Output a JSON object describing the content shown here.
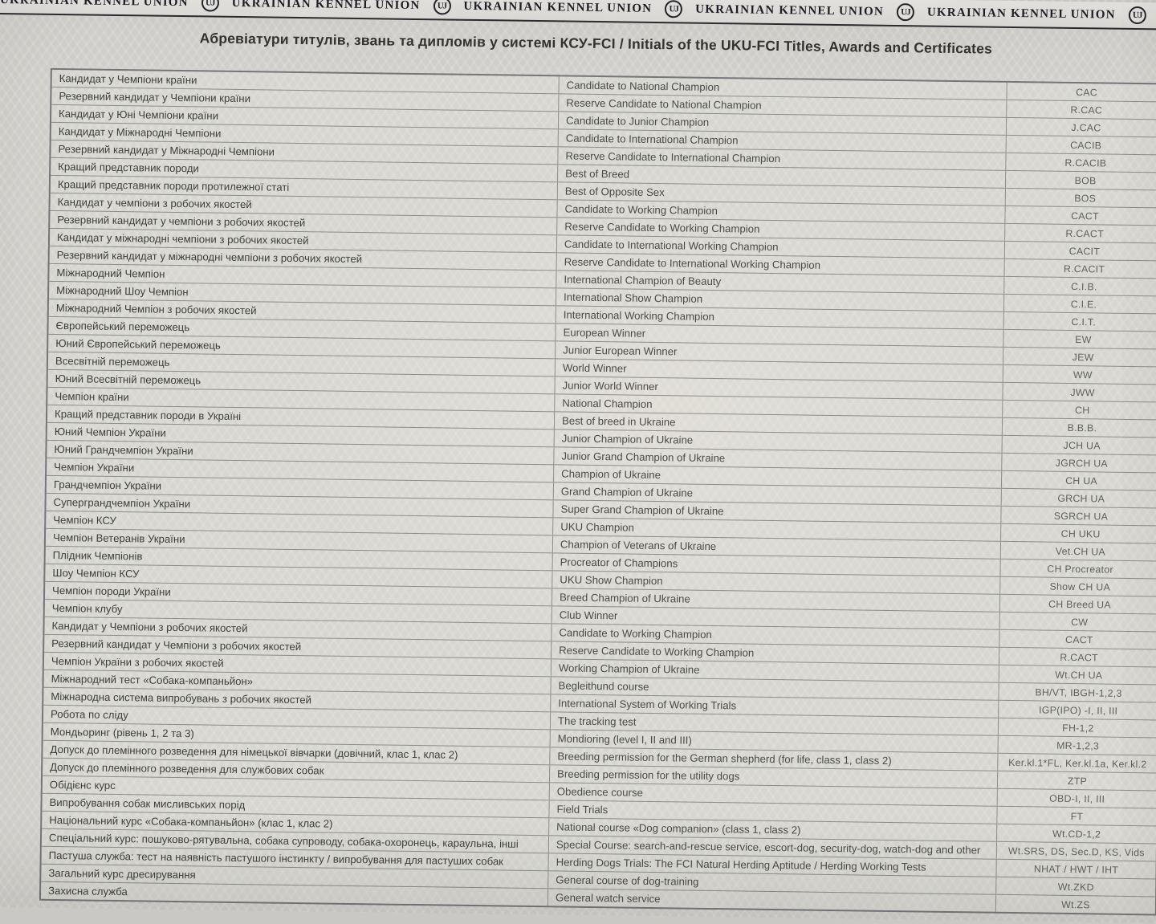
{
  "colors": {
    "paper": "#d8d7d3",
    "ink": "#3e3e3d",
    "border": "#8d8d8b",
    "banner_ink": "#1d1d25"
  },
  "document": {
    "banner": {
      "label": "UKRAINIAN KENNEL UNION",
      "monogram": "UJ",
      "repeat": 6
    },
    "title": "Абревіатури титулів, звань та дипломів у системі КСУ-FCI / Initials of the UKU-FCI Titles, Awards and Certificates",
    "rows": [
      {
        "uk": "Кандидат у Чемпіони країни",
        "en": "Candidate to National Champion",
        "abbr": "CAC"
      },
      {
        "uk": "Резервний кандидат у Чемпіони країни",
        "en": "Reserve Candidate to National Champion",
        "abbr": "R.CAC"
      },
      {
        "uk": "Кандидат у Юні Чемпіони країни",
        "en": "Candidate to Junior Champion",
        "abbr": "J.CAC"
      },
      {
        "uk": "Кандидат у Міжнародні Чемпіони",
        "en": "Candidate to International Champion",
        "abbr": "CACIB"
      },
      {
        "uk": "Резервний кандидат у Міжнародні Чемпіони",
        "en": "Reserve Candidate to International Champion",
        "abbr": "R.CACIB"
      },
      {
        "uk": "Кращий представник породи",
        "en": "Best of Breed",
        "abbr": "BOB"
      },
      {
        "uk": "Кращий представник породи протилежної статі",
        "en": "Best of Opposite Sex",
        "abbr": "BOS"
      },
      {
        "uk": "Кандидат у чемпіони з робочих якостей",
        "en": "Candidate to Working Champion",
        "abbr": "CACT"
      },
      {
        "uk": "Резервний кандидат у чемпіони з робочих якостей",
        "en": "Reserve Candidate to Working Champion",
        "abbr": "R.CACT"
      },
      {
        "uk": "Кандидат у міжнародні чемпіони з робочих якостей",
        "en": "Candidate to International Working Champion",
        "abbr": "CACIT"
      },
      {
        "uk": "Резервний кандидат у міжнародні чемпіони з робочих якостей",
        "en": "Reserve Candidate to International Working Champion",
        "abbr": "R.CACIT"
      },
      {
        "uk": "Міжнародний Чемпіон",
        "en": "International Champion of Beauty",
        "abbr": "C.I.B."
      },
      {
        "uk": "Міжнародний Шоу Чемпіон",
        "en": "International Show Champion",
        "abbr": "C.I.E."
      },
      {
        "uk": "Міжнародний Чемпіон з робочих якостей",
        "en": "International Working Champion",
        "abbr": "C.I.T."
      },
      {
        "uk": "Європейський переможець",
        "en": "European Winner",
        "abbr": "EW"
      },
      {
        "uk": "Юний Європейський переможець",
        "en": "Junior European Winner",
        "abbr": "JEW"
      },
      {
        "uk": "Всесвітній переможець",
        "en": "World Winner",
        "abbr": "WW"
      },
      {
        "uk": "Юний Всесвітній переможець",
        "en": "Junior World Winner",
        "abbr": "JWW"
      },
      {
        "uk": "Чемпіон країни",
        "en": "National Champion",
        "abbr": "CH"
      },
      {
        "uk": "Кращий представник породи в Україні",
        "en": "Best of breed in Ukraine",
        "abbr": "B.B.B."
      },
      {
        "uk": "Юний Чемпіон України",
        "en": "Junior Champion of Ukraine",
        "abbr": "JCH UA"
      },
      {
        "uk": "Юний Грандчемпіон України",
        "en": "Junior Grand Champion of Ukraine",
        "abbr": "JGRCH UA"
      },
      {
        "uk": "Чемпіон України",
        "en": "Champion of Ukraine",
        "abbr": "CH UA"
      },
      {
        "uk": "Грандчемпіон України",
        "en": "Grand Champion of Ukraine",
        "abbr": "GRCH UA"
      },
      {
        "uk": "Суперграндчемпіон України",
        "en": "Super Grand Champion of Ukraine",
        "abbr": "SGRCH UA"
      },
      {
        "uk": "Чемпіон КСУ",
        "en": "UKU Champion",
        "abbr": "CH UKU"
      },
      {
        "uk": "Чемпіон Ветеранів України",
        "en": "Champion of Veterans of Ukraine",
        "abbr": "Vet.CH UA"
      },
      {
        "uk": "Плідник Чемпіонів",
        "en": "Procreator of Champions",
        "abbr": "CH Procreator"
      },
      {
        "uk": "Шоу Чемпіон КСУ",
        "en": "UKU Show Champion",
        "abbr": "Show CH UA"
      },
      {
        "uk": "Чемпіон породи України",
        "en": "Breed Champion of Ukraine",
        "abbr": "CH Breed UA"
      },
      {
        "uk": "Чемпіон клубу",
        "en": "Club Winner",
        "abbr": "CW"
      },
      {
        "uk": "Кандидат у Чемпіони з робочих якостей",
        "en": "Candidate to Working Champion",
        "abbr": "CACT"
      },
      {
        "uk": "Резервний кандидат у Чемпіони з робочих якостей",
        "en": "Reserve Candidate to Working Champion",
        "abbr": "R.CACT"
      },
      {
        "uk": "Чемпіон України з робочих якостей",
        "en": "Working Champion of Ukraine",
        "abbr": "Wt.CH UA"
      },
      {
        "uk": "Міжнародний тест «Собака-компаньйон»",
        "en": "Begleithund course",
        "abbr": "BH/VT, IBGH-1,2,3"
      },
      {
        "uk": "Міжнародна система випробувань з робочих якостей",
        "en": "International System of Working Trials",
        "abbr": "IGP(IPO) -I, II, III"
      },
      {
        "uk": "Робота по сліду",
        "en": "The tracking test",
        "abbr": "FH-1,2"
      },
      {
        "uk": "Мондьоринг (рівень 1, 2 та 3)",
        "en": "Mondioring (level I, II and III)",
        "abbr": "MR-1,2,3"
      },
      {
        "uk": "Допуск до племінного розведення для німецької вівчарки (довічний, клас 1, клас 2)",
        "en": "Breeding permission for the German shepherd (for life, class 1, class 2)",
        "abbr": "Ker.kl.1*FL, Ker.kl.1a, Ker.kl.2"
      },
      {
        "uk": "Допуск до племінного розведення для службових собак",
        "en": "Breeding permission for the utility dogs",
        "abbr": "ZTP"
      },
      {
        "uk": "Обідієнс курс",
        "en": "Obedience course",
        "abbr": "OBD-I, II, III"
      },
      {
        "uk": "Випробування собак мисливських порід",
        "en": "Field Trials",
        "abbr": "FT"
      },
      {
        "uk": "Національний курс «Собака-компаньйон» (клас 1, клас 2)",
        "en": "National course «Dog companion» (class 1, class 2)",
        "abbr": "Wt.CD-1,2"
      },
      {
        "uk": "Спеціальний курс: пошуково-рятувальна, собака супроводу, собака-охоронець, караульна, інші",
        "en": "Special Course: search-and-rescue service, escort-dog, security-dog, watch-dog and other",
        "abbr": "Wt.SRS, DS, Sec.D, KS, Vids"
      },
      {
        "uk": "Пастуша служба: тест на наявність пастушого інстинкту / випробування для пастуших собак",
        "en": "Herding Dogs Trials: The FCI Natural Herding Aptitude / Herding Working Tests",
        "abbr": "NHAT / HWT / IHT"
      },
      {
        "uk": "Загальний курс дресирування",
        "en": "General course of dog-training",
        "abbr": "Wt.ZKD"
      },
      {
        "uk": "Захисна служба",
        "en": "General watch service",
        "abbr": "Wt.ZS"
      }
    ]
  }
}
